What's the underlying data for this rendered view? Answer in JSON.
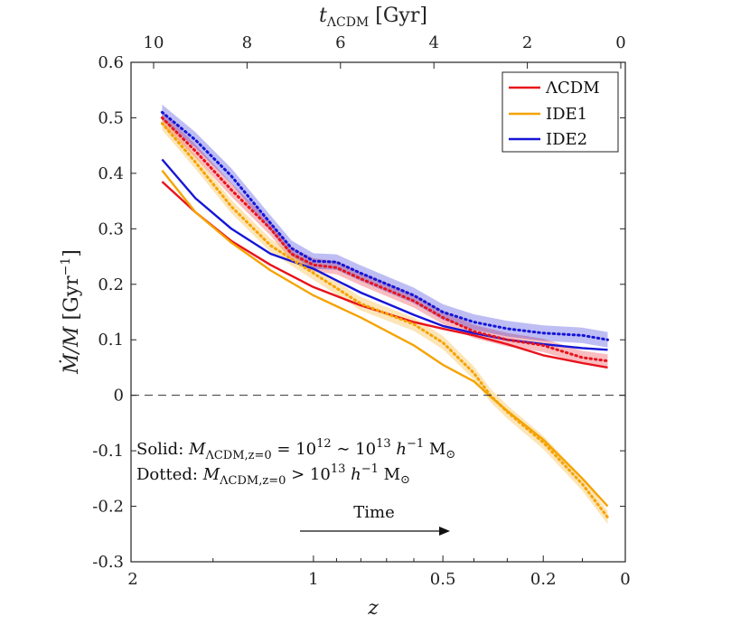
{
  "chart_data": {
    "type": "line",
    "title": "",
    "x_bottom": {
      "label": "z",
      "scale": "log(1+z), reversed",
      "ticks": [
        "2",
        "1",
        "0.5",
        "0.2",
        "0"
      ],
      "tick_values": [
        2,
        1,
        0.5,
        0.2,
        0
      ]
    },
    "x_top": {
      "label": "t_ΛCDM [Gyr]",
      "label_main": "t",
      "label_sub": "ΛCDM",
      "label_unit": " [Gyr]",
      "ticks": [
        "10",
        "8",
        "6",
        "4",
        "2",
        "0"
      ],
      "tick_values": [
        10,
        8,
        6,
        4,
        2,
        0
      ]
    },
    "y": {
      "label": "Ṁ/M [Gyr⁻¹]",
      "label_main": "Ṁ/M",
      "label_unit": " [Gyr",
      "label_exp": "−1",
      "label_close": "]",
      "ylim": [
        -0.3,
        0.6
      ],
      "ticks": [
        "0.6",
        "0.5",
        "0.4",
        "0.3",
        "0.2",
        "0.1",
        "0",
        "-0.1",
        "-0.2",
        "-0.3"
      ],
      "tick_values": [
        0.6,
        0.5,
        0.4,
        0.3,
        0.2,
        0.1,
        0,
        -0.1,
        -0.2,
        -0.3
      ]
    },
    "zero_line": 0,
    "legend": {
      "position": "top-right",
      "entries": [
        {
          "name": "ΛCDM",
          "color": "#e8121b"
        },
        {
          "name": "IDE1",
          "color": "#f5a300"
        },
        {
          "name": "IDE2",
          "color": "#1515d8"
        }
      ]
    },
    "series": [
      {
        "name": "ΛCDM",
        "style": "solid",
        "color": "#e8121b",
        "z": [
          1.8,
          1.6,
          1.4,
          1.2,
          1.0,
          0.8,
          0.6,
          0.5,
          0.4,
          0.3,
          0.2,
          0.1,
          0.04
        ],
        "values": [
          0.385,
          0.33,
          0.278,
          0.235,
          0.195,
          0.162,
          0.132,
          0.12,
          0.108,
          0.092,
          0.072,
          0.058,
          0.05
        ]
      },
      {
        "name": "IDE1",
        "style": "solid",
        "color": "#f5a300",
        "z": [
          1.8,
          1.6,
          1.4,
          1.2,
          1.0,
          0.8,
          0.6,
          0.5,
          0.4,
          0.35,
          0.3,
          0.2,
          0.1,
          0.04
        ],
        "values": [
          0.405,
          0.33,
          0.275,
          0.225,
          0.18,
          0.14,
          0.09,
          0.055,
          0.025,
          -0.002,
          -0.028,
          -0.08,
          -0.15,
          -0.2
        ]
      },
      {
        "name": "IDE2",
        "style": "solid",
        "color": "#1515d8",
        "z": [
          1.8,
          1.6,
          1.4,
          1.2,
          1.0,
          0.8,
          0.6,
          0.5,
          0.4,
          0.3,
          0.2,
          0.1,
          0.04
        ],
        "values": [
          0.425,
          0.355,
          0.3,
          0.255,
          0.228,
          0.185,
          0.145,
          0.125,
          0.112,
          0.1,
          0.092,
          0.085,
          0.082
        ]
      },
      {
        "name": "ΛCDM (dotted)",
        "style": "dotted",
        "color": "#e8121b",
        "band": 0.012,
        "z": [
          1.8,
          1.6,
          1.4,
          1.2,
          1.1,
          1.0,
          0.9,
          0.8,
          0.6,
          0.5,
          0.4,
          0.3,
          0.2,
          0.1,
          0.04
        ],
        "values": [
          0.5,
          0.44,
          0.37,
          0.3,
          0.255,
          0.235,
          0.23,
          0.21,
          0.17,
          0.14,
          0.115,
          0.1,
          0.09,
          0.068,
          0.062
        ]
      },
      {
        "name": "IDE1 (dotted)",
        "style": "dotted",
        "color": "#f5a300",
        "band": 0.012,
        "z": [
          1.8,
          1.6,
          1.4,
          1.2,
          1.0,
          0.8,
          0.6,
          0.5,
          0.4,
          0.35,
          0.3,
          0.2,
          0.1,
          0.04
        ],
        "values": [
          0.49,
          0.42,
          0.34,
          0.27,
          0.22,
          0.165,
          0.128,
          0.095,
          0.04,
          0.0,
          -0.03,
          -0.085,
          -0.16,
          -0.22
        ]
      },
      {
        "name": "IDE2 (dotted)",
        "style": "dotted",
        "color": "#1515d8",
        "band": 0.014,
        "z": [
          1.8,
          1.6,
          1.4,
          1.2,
          1.1,
          1.0,
          0.9,
          0.8,
          0.6,
          0.5,
          0.4,
          0.3,
          0.2,
          0.1,
          0.04
        ],
        "values": [
          0.51,
          0.46,
          0.395,
          0.31,
          0.265,
          0.242,
          0.24,
          0.22,
          0.18,
          0.15,
          0.132,
          0.12,
          0.112,
          0.108,
          0.1
        ]
      }
    ],
    "annotations": {
      "solid_label": "Solid:",
      "solid_text": "M",
      "solid_sub": "ΛCDM,z=0",
      "solid_rest": " = 10",
      "solid_exp1": "12",
      "solid_mid": " ∼ 10",
      "solid_exp2": "13",
      "solid_h": " h",
      "solid_hexp": "−1",
      "solid_msun": " M",
      "solid_sun": "⊙",
      "dotted_label": "Dotted:",
      "dotted_text": "M",
      "dotted_sub": "ΛCDM,z=0",
      "dotted_rest": " > 10",
      "dotted_exp": "13",
      "dotted_h": " h",
      "dotted_hexp": "−1",
      "dotted_msun": " M",
      "dotted_sun": "⊙",
      "time_label": "Time"
    }
  }
}
